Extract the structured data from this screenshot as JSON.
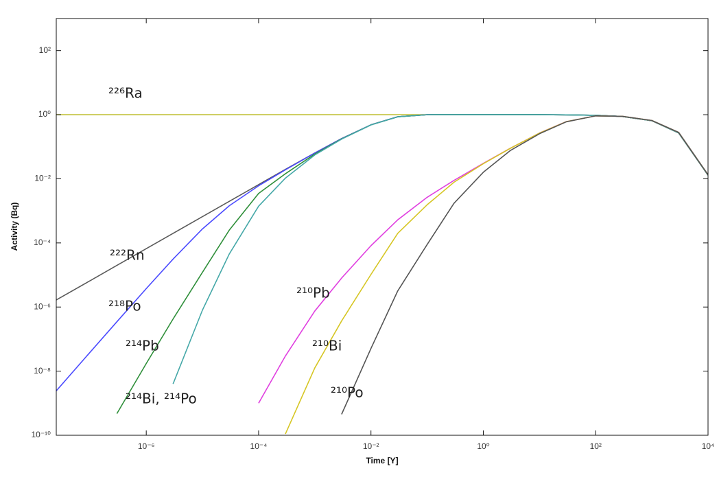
{
  "chart_data": {
    "type": "line",
    "xlabel": "Time [Y]",
    "ylabel": "Activity (Bq)",
    "log_x": true,
    "log_y": true,
    "xlim": [
      2.5e-08,
      10000
    ],
    "ylim": [
      1e-10,
      1000
    ],
    "xticks": [
      {
        "value": 1e-06,
        "label": "10⁻⁶"
      },
      {
        "value": 0.0001,
        "label": "10⁻⁴"
      },
      {
        "value": 0.01,
        "label": "10⁻²"
      },
      {
        "value": 1,
        "label": "10⁰"
      },
      {
        "value": 100,
        "label": "10²"
      },
      {
        "value": 10000,
        "label": "10⁴"
      }
    ],
    "yticks": [
      {
        "value": 1e-10,
        "label": "10⁻¹⁰"
      },
      {
        "value": 1e-08,
        "label": "10⁻⁸"
      },
      {
        "value": 1e-06,
        "label": "10⁻⁶"
      },
      {
        "value": 0.0001,
        "label": "10⁻⁴"
      },
      {
        "value": 0.01,
        "label": "10⁻²"
      },
      {
        "value": 1,
        "label": "10⁰"
      },
      {
        "value": 100,
        "label": "10²"
      }
    ],
    "x": [
      2.5e-08,
      1e-07,
      3e-07,
      1e-06,
      3e-06,
      1e-05,
      3e-05,
      0.0001,
      0.0003,
      0.001,
      0.003,
      0.01,
      0.03,
      0.1,
      0.3,
      1,
      3,
      10,
      30,
      100,
      300,
      1000,
      3000,
      10000
    ],
    "series": [
      {
        "name": "²²⁶Ra",
        "color": "#c2c23a",
        "values": [
          1,
          1,
          1,
          1,
          1,
          1,
          1,
          1,
          1,
          1,
          1,
          1,
          1,
          1,
          1,
          1,
          1,
          1,
          0.99,
          0.96,
          0.88,
          0.65,
          0.27,
          0.013
        ]
      },
      {
        "name": "²²²Rn",
        "color": "#5a5a5a",
        "values": [
          1.66e-06,
          6.62e-06,
          1.99e-05,
          6.62e-05,
          0.000199,
          0.000662,
          0.00198,
          0.0066,
          0.0197,
          0.0641,
          0.18,
          0.484,
          0.863,
          0.999,
          1,
          1,
          1,
          1,
          0.99,
          0.96,
          0.88,
          0.65,
          0.27,
          0.013
        ]
      },
      {
        "name": "²¹⁸Po",
        "color": "#4a4aff",
        "values": [
          2.43e-09,
          3.89e-08,
          3.47e-07,
          3.76e-06,
          3.13e-05,
          0.000273,
          0.00144,
          0.00606,
          0.0191,
          0.0635,
          0.179,
          0.484,
          0.863,
          0.999,
          1,
          1,
          1,
          1,
          0.99,
          0.96,
          0.88,
          0.65,
          0.27,
          0.013
        ]
      },
      {
        "name": "²¹⁴Pb",
        "color": "#2f8f3a",
        "values": [
          null,
          null,
          4.72e-10,
          1.73e-08,
          4.24e-07,
          1.21e-05,
          0.00025,
          0.0035,
          0.0144,
          0.059,
          0.176,
          0.481,
          0.862,
          0.998,
          1,
          1,
          1,
          1,
          0.99,
          0.96,
          0.88,
          0.65,
          0.27,
          0.013
        ]
      },
      {
        "name": "²¹⁴Bi, ²¹⁴Po",
        "color": "#45a8a8",
        "values": [
          null,
          null,
          null,
          null,
          4e-09,
          8e-07,
          4.5e-05,
          0.0014,
          0.0105,
          0.0555,
          0.173,
          0.479,
          0.861,
          0.998,
          1,
          1,
          1,
          1,
          0.99,
          0.96,
          0.88,
          0.65,
          0.27,
          0.013
        ]
      },
      {
        "name": "²¹⁰Pb",
        "color": "#e040e0",
        "values": [
          null,
          null,
          null,
          null,
          null,
          null,
          null,
          1e-09,
          2.97e-08,
          7.5e-07,
          7.99e-06,
          8.2e-05,
          0.000526,
          0.00265,
          0.00889,
          0.0303,
          0.089,
          0.268,
          0.608,
          0.92,
          0.89,
          0.66,
          0.28,
          0.0134
        ]
      },
      {
        "name": "²¹⁰Bi",
        "color": "#d6c624",
        "values": [
          null,
          null,
          null,
          null,
          null,
          null,
          null,
          null,
          1.1e-10,
          1.26e-08,
          3.67e-07,
          1.04e-05,
          0.0002,
          0.00155,
          0.0078,
          0.0297,
          0.0885,
          0.267,
          0.607,
          0.92,
          0.89,
          0.66,
          0.28,
          0.0134
        ]
      },
      {
        "name": "²¹⁰Po",
        "color": "#555555",
        "values": [
          null,
          null,
          null,
          null,
          null,
          null,
          null,
          null,
          null,
          null,
          4.5e-10,
          5.1e-08,
          3.2e-06,
          8.9e-05,
          0.00172,
          0.016,
          0.0756,
          0.255,
          0.6,
          0.92,
          0.89,
          0.66,
          0.28,
          0.0134
        ]
      }
    ]
  }
}
